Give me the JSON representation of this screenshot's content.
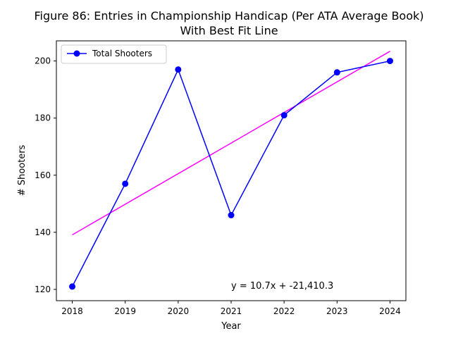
{
  "chart_data": {
    "type": "line",
    "title_line1": "Figure 86: Entries in Championship Handicap (Per ATA Average Book)",
    "title_line2": "With Best Fit Line",
    "xlabel": "Year",
    "ylabel": "# Shooters",
    "x": [
      2018,
      2019,
      2020,
      2021,
      2022,
      2023,
      2024
    ],
    "xlim": [
      2017.7,
      2024.3
    ],
    "ylim": [
      116.05,
      207.05
    ],
    "yticks": [
      120,
      140,
      160,
      180,
      200
    ],
    "series": [
      {
        "name": "Total Shooters",
        "values": [
          121,
          157,
          197,
          146,
          181,
          196,
          200
        ],
        "color": "#0000ff",
        "marker": "circle"
      }
    ],
    "fit_line": {
      "x": [
        2018,
        2024
      ],
      "y": [
        139.1,
        203.4
      ],
      "color": "#ff00ff",
      "equation": "y = 10.7x + -21,410.3"
    },
    "legend_position": "top-left",
    "grid": false
  }
}
